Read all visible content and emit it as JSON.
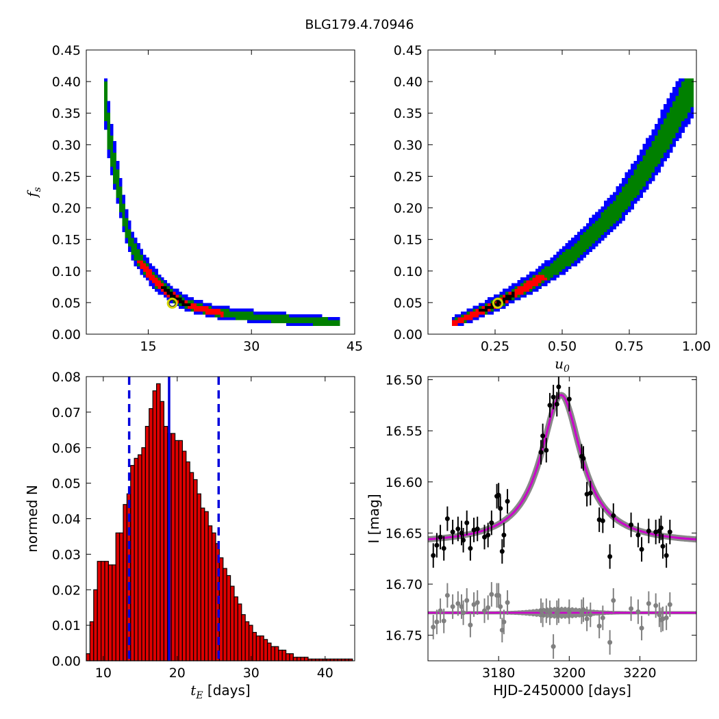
{
  "figure": {
    "title": "BLG179.4.70946"
  },
  "chart_data": [
    {
      "type": "heatmap",
      "panel": "top-left",
      "xlabel": "",
      "ylabel": "f_s",
      "xlim": [
        6,
        45
      ],
      "ylim": [
        0,
        0.45
      ],
      "xticks": [
        15,
        30,
        45
      ],
      "yticks": [
        0.0,
        0.05,
        0.1,
        0.15,
        0.2,
        0.25,
        0.3,
        0.35,
        0.4,
        0.45
      ],
      "ytick_labels": [
        "0.00",
        "0.05",
        "0.10",
        "0.15",
        "0.20",
        "0.25",
        "0.30",
        "0.35",
        "0.40",
        "0.45"
      ],
      "confidence_colors": [
        "#0000ff",
        "#008000",
        "#ff0000",
        "#000000"
      ],
      "ridge": [
        [
          8.6,
          0.4
        ],
        [
          9.0,
          0.34
        ],
        [
          9.5,
          0.3
        ],
        [
          10.3,
          0.25
        ],
        [
          11.2,
          0.2
        ],
        [
          12.0,
          0.16
        ],
        [
          13.0,
          0.13
        ],
        [
          14.5,
          0.105
        ],
        [
          16.0,
          0.085
        ],
        [
          18.0,
          0.065
        ],
        [
          20.0,
          0.05
        ],
        [
          22.0,
          0.042
        ],
        [
          25.0,
          0.034
        ],
        [
          28.0,
          0.03
        ],
        [
          32.0,
          0.026
        ],
        [
          36.0,
          0.023
        ],
        [
          40.0,
          0.02
        ],
        [
          43.0,
          0.018
        ]
      ],
      "best_fit": {
        "x": 18.5,
        "y": 0.049
      }
    },
    {
      "type": "heatmap",
      "panel": "top-right",
      "xlabel": "u_0",
      "ylabel": "",
      "xlim": [
        0,
        1
      ],
      "ylim": [
        0,
        0.45
      ],
      "xticks": [
        0.25,
        0.5,
        0.75,
        1.0
      ],
      "xtick_labels": [
        "0.25",
        "0.50",
        "0.75",
        "1.00"
      ],
      "yticks": [
        0.0,
        0.05,
        0.1,
        0.15,
        0.2,
        0.25,
        0.3,
        0.35,
        0.4,
        0.45
      ],
      "ytick_labels": [
        "0.00",
        "0.05",
        "0.10",
        "0.15",
        "0.20",
        "0.25",
        "0.30",
        "0.35",
        "0.40",
        "0.45"
      ],
      "confidence_colors": [
        "#0000ff",
        "#008000",
        "#ff0000",
        "#000000"
      ],
      "ridge": [
        [
          0.09,
          0.017
        ],
        [
          0.15,
          0.027
        ],
        [
          0.2,
          0.037
        ],
        [
          0.26,
          0.049
        ],
        [
          0.33,
          0.066
        ],
        [
          0.4,
          0.083
        ],
        [
          0.48,
          0.106
        ],
        [
          0.55,
          0.13
        ],
        [
          0.62,
          0.16
        ],
        [
          0.7,
          0.195
        ],
        [
          0.77,
          0.235
        ],
        [
          0.84,
          0.28
        ],
        [
          0.9,
          0.325
        ],
        [
          0.95,
          0.365
        ],
        [
          0.99,
          0.395
        ]
      ],
      "best_fit": {
        "x": 0.26,
        "y": 0.049
      }
    },
    {
      "type": "bar",
      "panel": "bottom-left",
      "xlabel": "t_E [days]",
      "ylabel": "normed N",
      "xlim": [
        7.7,
        44
      ],
      "ylim": [
        0,
        0.08
      ],
      "xticks": [
        10,
        20,
        30,
        40
      ],
      "yticks": [
        0.0,
        0.01,
        0.02,
        0.03,
        0.04,
        0.05,
        0.06,
        0.07,
        0.08
      ],
      "ytick_labels": [
        "0.00",
        "0.01",
        "0.02",
        "0.03",
        "0.04",
        "0.05",
        "0.06",
        "0.07",
        "0.08"
      ],
      "bin_start": 7.7,
      "bin_width": 0.5,
      "values": [
        0.002,
        0.011,
        0.02,
        0.028,
        0.028,
        0.028,
        0.027,
        0.027,
        0.036,
        0.036,
        0.044,
        0.047,
        0.055,
        0.057,
        0.058,
        0.06,
        0.066,
        0.071,
        0.076,
        0.078,
        0.073,
        0.066,
        0.064,
        0.064,
        0.062,
        0.062,
        0.059,
        0.056,
        0.053,
        0.051,
        0.047,
        0.043,
        0.042,
        0.038,
        0.036,
        0.033,
        0.029,
        0.026,
        0.024,
        0.021,
        0.018,
        0.016,
        0.013,
        0.011,
        0.01,
        0.008,
        0.007,
        0.007,
        0.006,
        0.005,
        0.004,
        0.004,
        0.003,
        0.003,
        0.002,
        0.002,
        0.001,
        0.001,
        0.001,
        0.001,
        0.0005,
        0.0005,
        0.0005,
        0.0005,
        0.0005,
        0.0005,
        0.0005,
        0.0005,
        0.0005,
        0.0005,
        0.0005,
        0.0005
      ],
      "bar_color": "#dd0000",
      "median_line": 18.9,
      "interval_lines": [
        13.5,
        25.6
      ],
      "line_color": "#0000dd"
    },
    {
      "type": "scatter",
      "panel": "bottom-right",
      "xlabel": "HJD-2450000 [days]",
      "ylabel": "I [mag]",
      "xlim": [
        3160,
        3236
      ],
      "ylim": [
        16.775,
        16.497
      ],
      "y_inverted": true,
      "xticks": [
        3180,
        3200,
        3220
      ],
      "yticks": [
        16.5,
        16.55,
        16.6,
        16.65,
        16.7,
        16.75
      ],
      "ytick_labels": [
        "16.50",
        "16.55",
        "16.60",
        "16.65",
        "16.70",
        "16.75"
      ],
      "model": {
        "t0": 3197.7,
        "baseline": 16.661,
        "peak_amplitude": 0.146,
        "tau": 7.0,
        "residual_level": 16.728
      },
      "model_color": "#cc00cc",
      "band_color": "#888888",
      "data": [
        [
          3161.5,
          16.672
        ],
        [
          3162.5,
          16.662
        ],
        [
          3163.5,
          16.654
        ],
        [
          3164.5,
          16.665
        ],
        [
          3165.5,
          16.636
        ],
        [
          3167.0,
          16.649
        ],
        [
          3168.5,
          16.646
        ],
        [
          3169.5,
          16.65
        ],
        [
          3170.0,
          16.657
        ],
        [
          3171.0,
          16.64
        ],
        [
          3172.0,
          16.665
        ],
        [
          3173.0,
          16.647
        ],
        [
          3174.0,
          16.646
        ],
        [
          3176.0,
          16.654
        ],
        [
          3177.0,
          16.652
        ],
        [
          3178.0,
          16.64
        ],
        [
          3179.5,
          16.614
        ],
        [
          3180.0,
          16.613
        ],
        [
          3180.5,
          16.626
        ],
        [
          3181.0,
          16.668
        ],
        [
          3181.5,
          16.652
        ],
        [
          3182.5,
          16.619
        ],
        [
          3192.0,
          16.571
        ],
        [
          3192.5,
          16.555
        ],
        [
          3193.5,
          16.569
        ],
        [
          3194.5,
          16.525
        ],
        [
          3195.5,
          16.517
        ],
        [
          3196.5,
          16.524
        ],
        [
          3197.0,
          16.507
        ],
        [
          3200.0,
          16.519
        ],
        [
          3203.5,
          16.575
        ],
        [
          3204.0,
          16.577
        ],
        [
          3205.0,
          16.612
        ],
        [
          3206.0,
          16.611
        ],
        [
          3208.5,
          16.637
        ],
        [
          3209.5,
          16.638
        ],
        [
          3211.5,
          16.673
        ],
        [
          3212.5,
          16.633
        ],
        [
          3217.5,
          16.642
        ],
        [
          3219.5,
          16.652
        ],
        [
          3220.5,
          16.666
        ],
        [
          3222.5,
          16.648
        ],
        [
          3224.5,
          16.649
        ],
        [
          3225.5,
          16.648
        ],
        [
          3226.0,
          16.645
        ],
        [
          3226.5,
          16.663
        ],
        [
          3227.5,
          16.672
        ],
        [
          3228.5,
          16.649
        ]
      ],
      "residuals": [
        [
          3161.5,
          16.742
        ],
        [
          3162.5,
          16.737
        ],
        [
          3163.5,
          16.726
        ],
        [
          3164.5,
          16.736
        ],
        [
          3165.5,
          16.711
        ],
        [
          3167.0,
          16.722
        ],
        [
          3168.5,
          16.719
        ],
        [
          3169.5,
          16.722
        ],
        [
          3170.0,
          16.728
        ],
        [
          3171.0,
          16.716
        ],
        [
          3172.0,
          16.74
        ],
        [
          3173.0,
          16.72
        ],
        [
          3174.0,
          16.718
        ],
        [
          3176.0,
          16.726
        ],
        [
          3177.0,
          16.723
        ],
        [
          3178.0,
          16.71
        ],
        [
          3179.5,
          16.711
        ],
        [
          3180.0,
          16.711
        ],
        [
          3180.5,
          16.722
        ],
        [
          3181.0,
          16.745
        ],
        [
          3181.5,
          16.737
        ],
        [
          3182.5,
          16.718
        ],
        [
          3192.0,
          16.726
        ],
        [
          3192.5,
          16.73
        ],
        [
          3193.5,
          16.726
        ],
        [
          3194.5,
          16.728
        ],
        [
          3195.5,
          16.761
        ],
        [
          3196.5,
          16.728
        ],
        [
          3197.0,
          16.726
        ],
        [
          3200.0,
          16.727
        ],
        [
          3203.5,
          16.727
        ],
        [
          3204.0,
          16.725
        ],
        [
          3205.0,
          16.734
        ],
        [
          3206.0,
          16.73
        ],
        [
          3208.5,
          16.741
        ],
        [
          3209.5,
          16.733
        ],
        [
          3211.5,
          16.757
        ],
        [
          3212.5,
          16.716
        ],
        [
          3217.5,
          16.724
        ],
        [
          3219.5,
          16.727
        ],
        [
          3220.5,
          16.743
        ],
        [
          3222.5,
          16.719
        ],
        [
          3224.5,
          16.721
        ],
        [
          3225.5,
          16.73
        ],
        [
          3226.0,
          16.735
        ],
        [
          3226.5,
          16.734
        ],
        [
          3227.5,
          16.733
        ],
        [
          3228.5,
          16.72
        ]
      ]
    }
  ]
}
